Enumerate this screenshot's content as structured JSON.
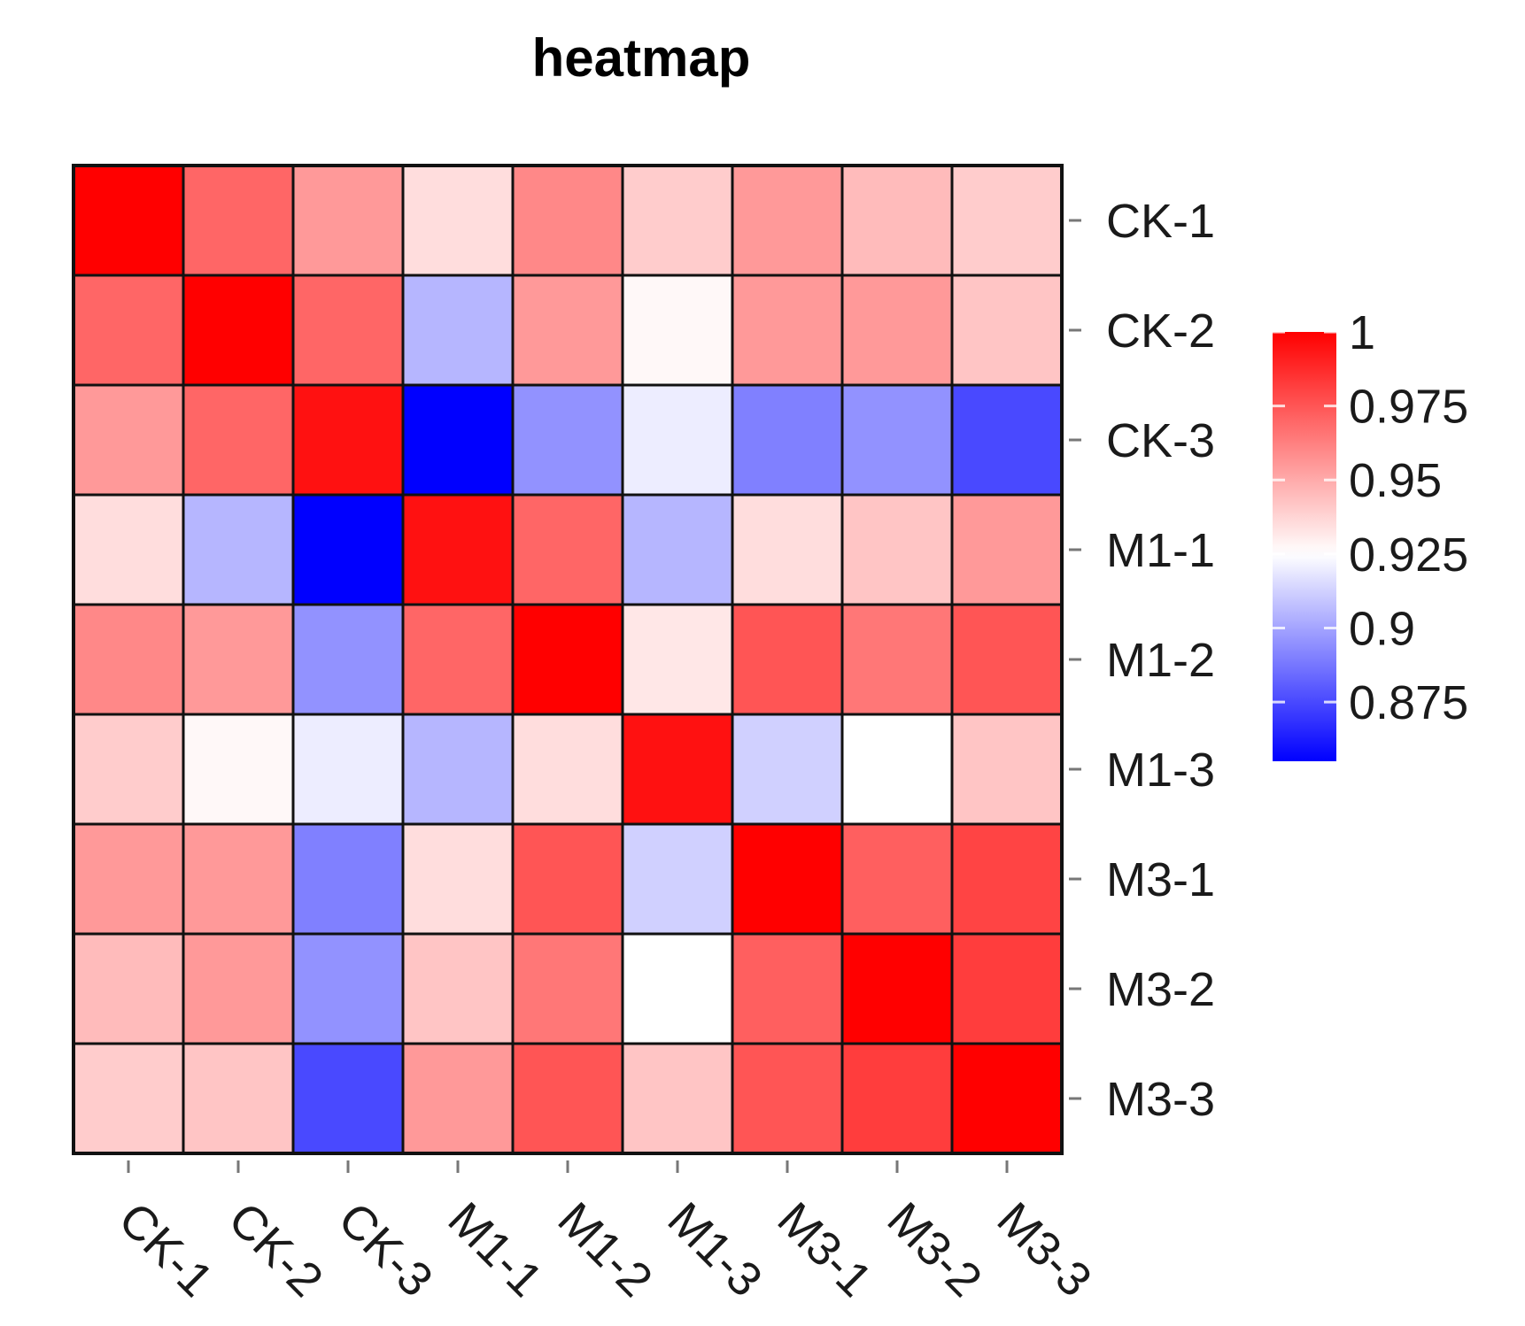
{
  "chart_data": {
    "type": "heatmap",
    "title": "heatmap",
    "row_labels": [
      "CK-1",
      "CK-2",
      "CK-3",
      "M1-1",
      "M1-2",
      "M1-3",
      "M3-1",
      "M3-2",
      "M3-3"
    ],
    "col_labels": [
      "CK-1",
      "CK-2",
      "CK-3",
      "M1-1",
      "M1-2",
      "M1-3",
      "M3-1",
      "M3-2",
      "M3-3"
    ],
    "values": [
      [
        1.0,
        0.97,
        0.955,
        0.935,
        0.96,
        0.94,
        0.955,
        0.945,
        0.94
      ],
      [
        0.97,
        1.0,
        0.97,
        0.905,
        0.955,
        0.927,
        0.955,
        0.955,
        0.942
      ],
      [
        0.955,
        0.97,
        0.995,
        0.855,
        0.895,
        0.92,
        0.89,
        0.895,
        0.875
      ],
      [
        0.935,
        0.905,
        0.855,
        0.995,
        0.97,
        0.905,
        0.935,
        0.942,
        0.955
      ],
      [
        0.96,
        0.955,
        0.895,
        0.97,
        1.0,
        0.932,
        0.975,
        0.965,
        0.975
      ],
      [
        0.94,
        0.927,
        0.92,
        0.905,
        0.935,
        0.995,
        0.912,
        0.925,
        0.942
      ],
      [
        0.955,
        0.955,
        0.89,
        0.935,
        0.975,
        0.912,
        1.0,
        0.972,
        0.98
      ],
      [
        0.945,
        0.955,
        0.895,
        0.942,
        0.965,
        0.925,
        0.972,
        1.0,
        0.982
      ],
      [
        0.94,
        0.942,
        0.875,
        0.955,
        0.975,
        0.942,
        0.975,
        0.982,
        1.0
      ]
    ],
    "color_scale": {
      "low_color": "#0000ff",
      "mid_color": "#ffffff",
      "high_color": "#ff0000",
      "min": 0.855,
      "mid": 0.925,
      "max": 1.0
    },
    "legend": {
      "position": "right",
      "ticks": [
        1,
        0.975,
        0.95,
        0.925,
        0.9,
        0.875
      ],
      "tick_labels": [
        "1",
        "0.975",
        "0.95",
        "0.925",
        "0.9",
        "0.875"
      ]
    },
    "grid": true
  }
}
